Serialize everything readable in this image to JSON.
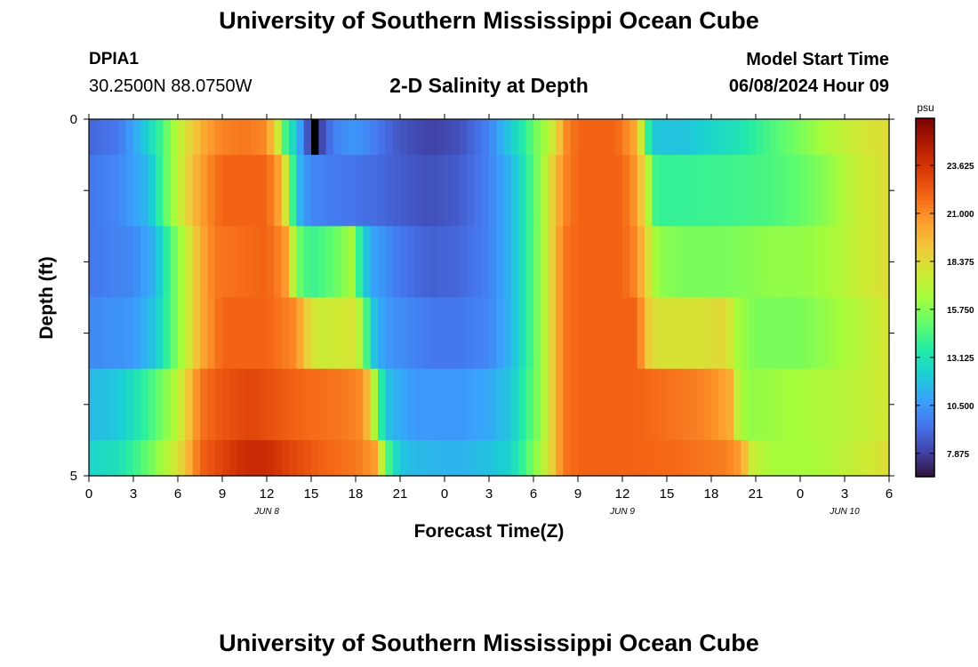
{
  "page": {
    "title_top": "University of Southern Mississippi Ocean Cube",
    "title_bottom": "University of Southern Mississippi Ocean Cube",
    "station_id": "DPIA1",
    "coordinates": "30.2500N  88.0750W",
    "plot_title": "2-D Salinity at Depth",
    "model_start_label": "Model Start Time",
    "model_start_value": "06/08/2024 Hour 09"
  },
  "colors": {
    "colormap": [
      "#30123b",
      "#4145ab",
      "#4675ed",
      "#39a2fc",
      "#1bcfd4",
      "#24eca6",
      "#61fc6c",
      "#a4fc3b",
      "#d1e834",
      "#f3c63a",
      "#fe9b2d",
      "#f36315",
      "#d93806",
      "#b11901",
      "#7a0403"
    ],
    "missing": "#000000"
  },
  "chart_data": {
    "type": "heatmap",
    "title": "2-D Salinity at Depth",
    "xlabel": "Forecast Time(Z)",
    "ylabel": "Depth (ft)",
    "x_tick_labels": [
      "0",
      "3",
      "6",
      "9",
      "12",
      "15",
      "18",
      "21",
      "0",
      "3",
      "6",
      "9",
      "12",
      "15",
      "18",
      "21",
      "0",
      "3",
      "6"
    ],
    "y_tick_labels": [
      "0",
      "5"
    ],
    "date_labels": [
      {
        "label": "JUN 8",
        "hour": 12
      },
      {
        "label": "JUN 9",
        "hour": 36
      },
      {
        "label": "JUN 10",
        "hour": 51
      }
    ],
    "x_range_hours": [
      0,
      54
    ],
    "hours_per_column": 0.5,
    "depth_range_ft": [
      0,
      5
    ],
    "colorbar": {
      "unit": "psu",
      "range": [
        6.6,
        26.2
      ],
      "ticks": [
        "7.875",
        "10.500",
        "13.125",
        "15.750",
        "18.375",
        "21.000",
        "23.625"
      ]
    },
    "missing_cells": [
      {
        "layer": 0,
        "hour_start": 15.0,
        "hour_end": 15.5
      }
    ],
    "layers": [
      {
        "depth_top": 0,
        "depth_bottom": 0.5,
        "keyframes": [
          [
            0,
            9.0
          ],
          [
            2,
            9.5
          ],
          [
            3.5,
            11.5
          ],
          [
            5,
            14.5
          ],
          [
            6,
            17.0
          ],
          [
            7,
            19.0
          ],
          [
            8,
            20.5
          ],
          [
            9,
            21.2
          ],
          [
            10.5,
            21.5
          ],
          [
            12,
            21.0
          ],
          [
            12.7,
            18.0
          ],
          [
            13.3,
            14.0
          ],
          [
            14,
            12.0
          ],
          [
            14.7,
            8.5
          ],
          [
            15.7,
            8.0
          ],
          [
            16.5,
            9.8
          ],
          [
            18,
            10.5
          ],
          [
            21,
            8.5
          ],
          [
            23,
            7.9
          ],
          [
            25,
            8.3
          ],
          [
            27,
            9.8
          ],
          [
            28,
            11.5
          ],
          [
            29,
            13.0
          ],
          [
            30,
            15.0
          ],
          [
            31,
            16.8
          ],
          [
            31.6,
            18.8
          ],
          [
            32.2,
            21.0
          ],
          [
            33,
            22.0
          ],
          [
            35.5,
            22.0
          ],
          [
            36,
            21.5
          ],
          [
            37,
            20.0
          ],
          [
            37.5,
            15.5
          ],
          [
            38,
            12.0
          ],
          [
            40,
            11.8
          ],
          [
            42,
            12.5
          ],
          [
            44,
            13.2
          ],
          [
            46,
            14.5
          ],
          [
            48,
            15.5
          ],
          [
            50,
            16.8
          ],
          [
            52,
            17.8
          ],
          [
            54,
            18.3
          ]
        ]
      },
      {
        "depth_top": 0.5,
        "depth_bottom": 1.5,
        "keyframes": [
          [
            0,
            9.5
          ],
          [
            2,
            10.0
          ],
          [
            4,
            11.5
          ],
          [
            5,
            14.5
          ],
          [
            6,
            17.0
          ],
          [
            7,
            19.5
          ],
          [
            8,
            21.0
          ],
          [
            9,
            22.0
          ],
          [
            12,
            22.0
          ],
          [
            13,
            20.0
          ],
          [
            13.6,
            15.0
          ],
          [
            14.3,
            11.0
          ],
          [
            15,
            10.0
          ],
          [
            17,
            9.5
          ],
          [
            19,
            9.2
          ],
          [
            21,
            8.7
          ],
          [
            23,
            8.3
          ],
          [
            25,
            8.7
          ],
          [
            27,
            9.8
          ],
          [
            28.5,
            11.5
          ],
          [
            29.5,
            13.5
          ],
          [
            30.5,
            16.0
          ],
          [
            31.2,
            18.5
          ],
          [
            32,
            21.0
          ],
          [
            33,
            22.0
          ],
          [
            36,
            22.0
          ],
          [
            37,
            20.5
          ],
          [
            37.7,
            17.0
          ],
          [
            38.3,
            14.0
          ],
          [
            40,
            14.0
          ],
          [
            43,
            14.2
          ],
          [
            46,
            14.5
          ],
          [
            48,
            15.0
          ],
          [
            50,
            16.0
          ],
          [
            52,
            17.5
          ],
          [
            54,
            18.3
          ]
        ]
      },
      {
        "depth_top": 1.5,
        "depth_bottom": 2.5,
        "keyframes": [
          [
            0,
            9.5
          ],
          [
            3,
            10.0
          ],
          [
            4.5,
            11.5
          ],
          [
            5.5,
            14.5
          ],
          [
            6.5,
            17.0
          ],
          [
            7.5,
            20.0
          ],
          [
            8.5,
            21.5
          ],
          [
            12,
            22.0
          ],
          [
            13.2,
            21.0
          ],
          [
            14,
            15.5
          ],
          [
            15,
            14.0
          ],
          [
            16.5,
            15.0
          ],
          [
            17.8,
            16.5
          ],
          [
            18.4,
            13.0
          ],
          [
            19,
            11.0
          ],
          [
            21,
            9.5
          ],
          [
            23,
            8.8
          ],
          [
            25,
            9.0
          ],
          [
            27,
            9.8
          ],
          [
            28.5,
            11.5
          ],
          [
            29.5,
            13.5
          ],
          [
            30.5,
            16.0
          ],
          [
            31.3,
            19.0
          ],
          [
            32,
            21.5
          ],
          [
            33,
            22.0
          ],
          [
            36,
            22.0
          ],
          [
            37,
            21.0
          ],
          [
            37.6,
            18.5
          ],
          [
            38.4,
            16.0
          ],
          [
            40,
            15.5
          ],
          [
            43,
            15.5
          ],
          [
            46,
            16.0
          ],
          [
            48,
            16.0
          ],
          [
            50,
            16.5
          ],
          [
            52,
            17.5
          ],
          [
            54,
            18.3
          ]
        ]
      },
      {
        "depth_top": 2.5,
        "depth_bottom": 3.5,
        "keyframes": [
          [
            0,
            10.0
          ],
          [
            3,
            10.5
          ],
          [
            4.5,
            12.0
          ],
          [
            5.5,
            14.5
          ],
          [
            6.5,
            17.0
          ],
          [
            7.5,
            20.0
          ],
          [
            9,
            22.0
          ],
          [
            12,
            22.0
          ],
          [
            14,
            21.0
          ],
          [
            14.6,
            19.0
          ],
          [
            15.5,
            17.5
          ],
          [
            18,
            18.0
          ],
          [
            18.5,
            16.0
          ],
          [
            19.1,
            12.0
          ],
          [
            20,
            10.5
          ],
          [
            23,
            9.5
          ],
          [
            25,
            9.5
          ],
          [
            27,
            10.0
          ],
          [
            28.5,
            11.5
          ],
          [
            29.5,
            13.5
          ],
          [
            30.5,
            16.0
          ],
          [
            31.3,
            19.0
          ],
          [
            32,
            21.5
          ],
          [
            33,
            22.0
          ],
          [
            37,
            22.0
          ],
          [
            37.7,
            19.0
          ],
          [
            38.4,
            18.0
          ],
          [
            41,
            18.0
          ],
          [
            43,
            18.5
          ],
          [
            43.7,
            16.5
          ],
          [
            45,
            15.5
          ],
          [
            48,
            15.5
          ],
          [
            51,
            16.5
          ],
          [
            54,
            18.0
          ]
        ]
      },
      {
        "depth_top": 3.5,
        "depth_bottom": 4.5,
        "keyframes": [
          [
            0,
            11.5
          ],
          [
            2,
            12.0
          ],
          [
            3.5,
            13.5
          ],
          [
            5,
            15.5
          ],
          [
            6,
            17.0
          ],
          [
            6.8,
            19.5
          ],
          [
            7.5,
            21.5
          ],
          [
            9,
            22.5
          ],
          [
            11,
            23.0
          ],
          [
            12.5,
            22.5
          ],
          [
            14,
            22.0
          ],
          [
            17,
            21.5
          ],
          [
            18.5,
            21.0
          ],
          [
            19.1,
            18.0
          ],
          [
            19.6,
            14.0
          ],
          [
            20.3,
            11.5
          ],
          [
            22,
            10.5
          ],
          [
            25,
            10.5
          ],
          [
            27,
            11.0
          ],
          [
            28.5,
            12.0
          ],
          [
            29.5,
            14.0
          ],
          [
            30.5,
            16.0
          ],
          [
            31.3,
            19.0
          ],
          [
            32,
            21.5
          ],
          [
            33,
            22.0
          ],
          [
            37,
            22.0
          ],
          [
            40,
            21.5
          ],
          [
            42,
            21.0
          ],
          [
            43.3,
            20.0
          ],
          [
            43.8,
            17.0
          ],
          [
            44.5,
            16.0
          ],
          [
            48,
            16.5
          ],
          [
            51,
            17.0
          ],
          [
            54,
            17.8
          ]
        ]
      },
      {
        "depth_top": 4.5,
        "depth_bottom": 5.0,
        "keyframes": [
          [
            0,
            12.5
          ],
          [
            2,
            13.0
          ],
          [
            3.5,
            14.5
          ],
          [
            5,
            16.5
          ],
          [
            6,
            18.0
          ],
          [
            6.8,
            20.0
          ],
          [
            7.5,
            22.0
          ],
          [
            9,
            23.0
          ],
          [
            10.5,
            24.0
          ],
          [
            12,
            24.0
          ],
          [
            13.5,
            23.0
          ],
          [
            16,
            22.0
          ],
          [
            18,
            21.5
          ],
          [
            19.3,
            20.5
          ],
          [
            19.8,
            17.0
          ],
          [
            20.3,
            14.0
          ],
          [
            21,
            12.0
          ],
          [
            22,
            11.5
          ],
          [
            25,
            11.3
          ],
          [
            27,
            11.8
          ],
          [
            28.5,
            12.5
          ],
          [
            29.5,
            14.5
          ],
          [
            30.5,
            16.5
          ],
          [
            31.3,
            19.0
          ],
          [
            32,
            21.5
          ],
          [
            33,
            22.0
          ],
          [
            37,
            22.0
          ],
          [
            40,
            21.8
          ],
          [
            43,
            21.3
          ],
          [
            44,
            20.5
          ],
          [
            44.8,
            17.5
          ],
          [
            46,
            16.5
          ],
          [
            49,
            16.5
          ],
          [
            52,
            17.5
          ],
          [
            54,
            18.3
          ]
        ]
      }
    ]
  }
}
